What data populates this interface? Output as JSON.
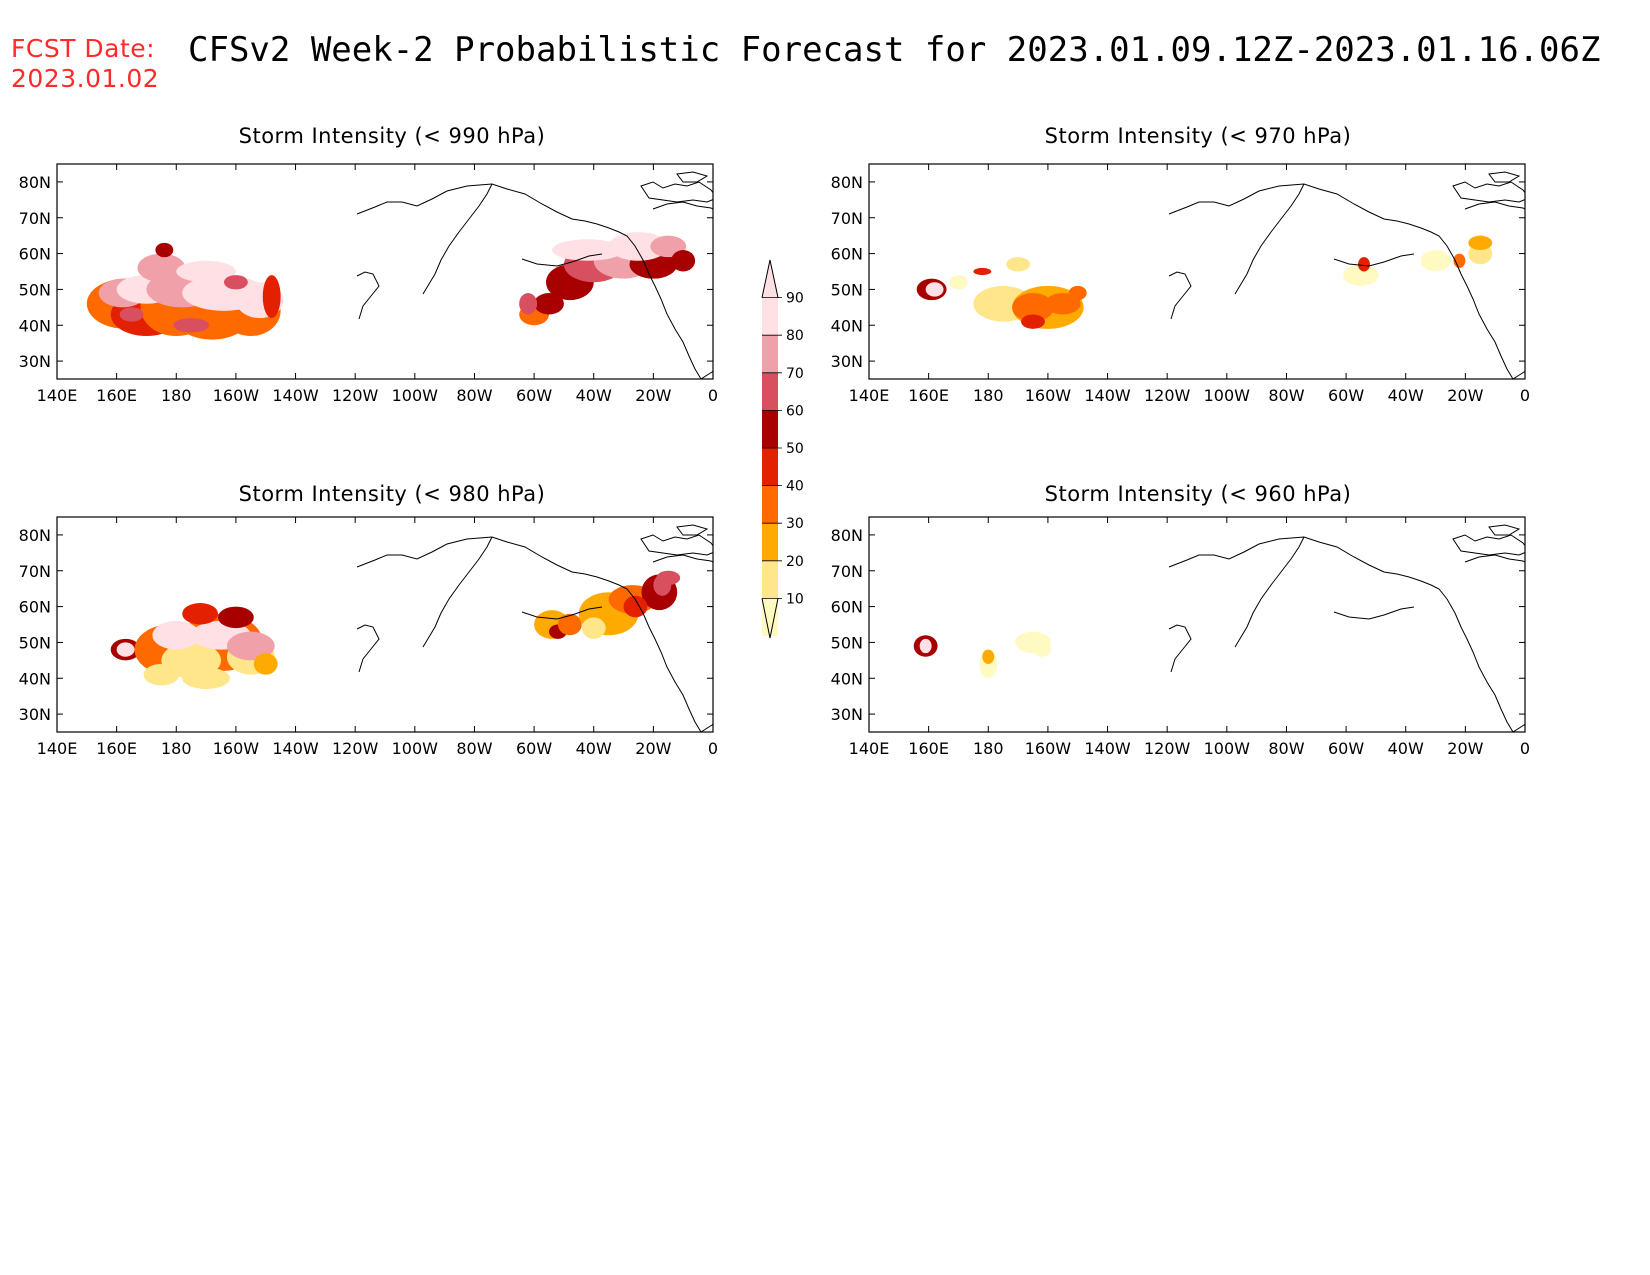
{
  "header": {
    "fcst_label_line1": "FCST Date:",
    "fcst_label_line2": "2023.01.02",
    "title": "CFSv2 Week-2 Probabilistic Forecast for 2023.01.09.12Z-2023.01.16.06Z"
  },
  "axes": {
    "lon_ticks": [
      "140E",
      "160E",
      "180",
      "160W",
      "140W",
      "120W",
      "100W",
      "80W",
      "60W",
      "40W",
      "20W",
      "0"
    ],
    "lat_ticks": [
      "30N",
      "40N",
      "50N",
      "60N",
      "70N",
      "80N"
    ],
    "lon_range": [
      140,
      360
    ],
    "lat_range": [
      25,
      85
    ]
  },
  "panels": [
    {
      "id": "p990",
      "title": "Storm Intensity (< 990 hPa)"
    },
    {
      "id": "p970",
      "title": "Storm Intensity (< 970 hPa)"
    },
    {
      "id": "p980",
      "title": "Storm Intensity (< 980 hPa)"
    },
    {
      "id": "p960",
      "title": "Storm Intensity (< 960 hPa)"
    }
  ],
  "colorbar": {
    "levels": [
      "10",
      "20",
      "30",
      "40",
      "50",
      "60",
      "70",
      "80",
      "90"
    ],
    "colors": [
      "#fff9c2",
      "#ffe68a",
      "#ffaa00",
      "#ff6a00",
      "#e32000",
      "#a80000",
      "#d85060",
      "#f0a0a8",
      "#ffe0e4"
    ]
  },
  "colors": {
    "fcst_label": "#ff2a2a",
    "coastline": "#000000"
  }
}
